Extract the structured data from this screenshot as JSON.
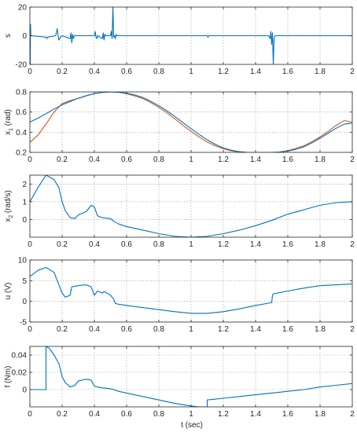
{
  "figure": {
    "xlabel": "t (sec)"
  },
  "colors": {
    "blue": "#0072BD",
    "red": "#D95319",
    "axis": "#262626",
    "grid": "#9a9a9a"
  },
  "chart_data": [
    {
      "type": "line",
      "ylabel": {
        "main": "s",
        "sub": ""
      },
      "xlim": [
        0,
        2
      ],
      "ylim": [
        -20,
        20
      ],
      "xticks": [
        0,
        0.2,
        0.4,
        0.6,
        0.8,
        1,
        1.2,
        1.4,
        1.6,
        1.8,
        2
      ],
      "xtick_labels": [
        "0",
        "0.2",
        "0.4",
        "0.6",
        "0.8",
        "1",
        "1.2",
        "1.4",
        "1.6",
        "1.8",
        "2"
      ],
      "yticks": [
        -20,
        0,
        20
      ],
      "ytick_labels": [
        "-20",
        "0",
        "20"
      ],
      "grid": true,
      "series": [
        {
          "color": "#0072BD",
          "x": [
            0,
            0.002,
            0.004,
            0.006,
            0.01,
            0.1,
            0.105,
            0.11,
            0.16,
            0.17,
            0.175,
            0.18,
            0.19,
            0.2,
            0.25,
            0.255,
            0.26,
            0.265,
            0.27,
            0.275,
            0.3,
            0.4,
            0.405,
            0.41,
            0.415,
            0.42,
            0.45,
            0.455,
            0.46,
            0.465,
            0.47,
            0.5,
            0.505,
            0.51,
            0.515,
            0.52,
            0.525,
            0.53,
            0.535,
            0.54,
            1.1,
            1.105,
            1.11,
            1.12,
            1.48,
            1.49,
            1.495,
            1.5,
            1.505,
            1.51,
            1.515,
            1.52,
            2
          ],
          "y": [
            0,
            -20,
            8,
            0,
            0,
            -1,
            -2,
            -1,
            0,
            5,
            0,
            -3,
            -1,
            0,
            -2,
            2,
            -5,
            1,
            -2,
            0,
            0,
            0,
            3,
            -1,
            -2,
            0,
            -2,
            2,
            -3,
            1,
            0,
            0,
            3,
            -2,
            20,
            -1,
            0,
            -2,
            1,
            0,
            0,
            -1,
            0,
            0,
            0,
            -2,
            3,
            -6,
            2,
            -20,
            -2,
            0,
            0
          ]
        }
      ]
    },
    {
      "type": "line",
      "ylabel": {
        "main": "x",
        "sub": "1",
        "after": " (rad)"
      },
      "xlim": [
        0,
        2
      ],
      "ylim": [
        0.2,
        0.8
      ],
      "xticks": [
        0,
        0.2,
        0.4,
        0.6,
        0.8,
        1,
        1.2,
        1.4,
        1.6,
        1.8,
        2
      ],
      "xtick_labels": [
        "0",
        "0.2",
        "0.4",
        "0.6",
        "0.8",
        "1",
        "1.2",
        "1.4",
        "1.6",
        "1.8",
        "2"
      ],
      "yticks": [
        0.2,
        0.4,
        0.6,
        0.8
      ],
      "ytick_labels": [
        "0.2",
        "0.4",
        "0.6",
        "0.8"
      ],
      "grid": true,
      "series": [
        {
          "color": "#D95319",
          "x": [
            0,
            0.05,
            0.1,
            0.15,
            0.2,
            0.25,
            0.3,
            0.35,
            0.4,
            0.45,
            0.5,
            0.55,
            0.6,
            0.65,
            0.7,
            0.75,
            0.8,
            0.85,
            0.9,
            0.95,
            1.0,
            1.05,
            1.1,
            1.15,
            1.2,
            1.25,
            1.3,
            1.35,
            1.4,
            1.45,
            1.5,
            1.55,
            1.6,
            1.65,
            1.7,
            1.75,
            1.8,
            1.85,
            1.9,
            1.95,
            2.0
          ],
          "y": [
            0.3,
            0.371,
            0.48,
            0.6,
            0.685,
            0.714,
            0.735,
            0.76,
            0.783,
            0.796,
            0.8,
            0.796,
            0.783,
            0.76,
            0.735,
            0.695,
            0.647,
            0.592,
            0.532,
            0.468,
            0.408,
            0.353,
            0.303,
            0.265,
            0.235,
            0.215,
            0.203,
            0.2,
            0.2,
            0.2,
            0.2,
            0.204,
            0.217,
            0.24,
            0.265,
            0.305,
            0.353,
            0.408,
            0.468,
            0.515,
            0.5
          ]
        },
        {
          "color": "#0072BD",
          "x": [
            0,
            0.05,
            0.1,
            0.15,
            0.2,
            0.25,
            0.3,
            0.35,
            0.4,
            0.45,
            0.5,
            0.55,
            0.6,
            0.65,
            0.7,
            0.75,
            0.8,
            0.85,
            0.9,
            0.95,
            1.0,
            1.05,
            1.1,
            1.15,
            1.2,
            1.25,
            1.3,
            1.35,
            1.4,
            1.45,
            1.5,
            1.55,
            1.6,
            1.65,
            1.7,
            1.75,
            1.8,
            1.85,
            1.9,
            1.95,
            2.0
          ],
          "y": [
            0.5,
            0.54,
            0.583,
            0.63,
            0.672,
            0.705,
            0.737,
            0.763,
            0.783,
            0.795,
            0.8,
            0.797,
            0.787,
            0.77,
            0.745,
            0.707,
            0.663,
            0.612,
            0.555,
            0.495,
            0.435,
            0.378,
            0.325,
            0.28,
            0.245,
            0.221,
            0.207,
            0.2,
            0.2,
            0.2,
            0.2,
            0.203,
            0.213,
            0.23,
            0.255,
            0.295,
            0.34,
            0.39,
            0.44,
            0.48,
            0.49
          ]
        }
      ]
    },
    {
      "type": "line",
      "ylabel": {
        "main": "x",
        "sub": "2",
        "after": " (rad/s)"
      },
      "xlim": [
        0,
        2
      ],
      "ylim": [
        -1,
        2.5
      ],
      "xticks": [
        0,
        0.2,
        0.4,
        0.6,
        0.8,
        1,
        1.2,
        1.4,
        1.6,
        1.8,
        2
      ],
      "xtick_labels": [
        "0",
        "0.2",
        "0.4",
        "0.6",
        "0.8",
        "1",
        "1.2",
        "1.4",
        "1.6",
        "1.8",
        "2"
      ],
      "yticks": [
        0,
        1,
        2
      ],
      "ytick_labels": [
        "0",
        "1",
        "2"
      ],
      "grid": true,
      "series": [
        {
          "color": "#0072BD",
          "x": [
            0,
            0.05,
            0.1,
            0.15,
            0.18,
            0.2,
            0.22,
            0.25,
            0.28,
            0.3,
            0.35,
            0.38,
            0.4,
            0.42,
            0.45,
            0.5,
            0.52,
            0.55,
            0.6,
            0.7,
            0.8,
            0.9,
            1.0,
            1.1,
            1.2,
            1.3,
            1.4,
            1.5,
            1.6,
            1.7,
            1.8,
            1.9,
            2.0
          ],
          "y": [
            1.0,
            1.8,
            2.5,
            2.25,
            1.8,
            1.0,
            0.5,
            0.1,
            0.05,
            0.25,
            0.45,
            0.8,
            0.7,
            0.2,
            0.1,
            0.05,
            -0.1,
            -0.25,
            -0.4,
            -0.6,
            -0.8,
            -0.95,
            -1.0,
            -0.95,
            -0.8,
            -0.6,
            -0.35,
            -0.05,
            0.3,
            0.55,
            0.8,
            0.95,
            1.0
          ]
        }
      ]
    },
    {
      "type": "line",
      "ylabel": {
        "main": "u (V)",
        "sub": ""
      },
      "xlim": [
        0,
        2
      ],
      "ylim": [
        -5,
        10
      ],
      "xticks": [
        0,
        0.2,
        0.4,
        0.6,
        0.8,
        1,
        1.2,
        1.4,
        1.6,
        1.8,
        2
      ],
      "xtick_labels": [
        "0",
        "0.2",
        "0.4",
        "0.6",
        "0.8",
        "1",
        "1.2",
        "1.4",
        "1.6",
        "1.8",
        "2"
      ],
      "yticks": [
        -5,
        0,
        5,
        10
      ],
      "ytick_labels": [
        "-5",
        "0",
        "5",
        "10"
      ],
      "grid": true,
      "series": [
        {
          "color": "#0072BD",
          "x": [
            0,
            0.05,
            0.1,
            0.15,
            0.18,
            0.2,
            0.22,
            0.25,
            0.26,
            0.27,
            0.3,
            0.35,
            0.38,
            0.4,
            0.42,
            0.45,
            0.46,
            0.5,
            0.52,
            0.53,
            0.55,
            0.6,
            0.7,
            0.8,
            0.9,
            1.0,
            1.1,
            1.2,
            1.3,
            1.4,
            1.5,
            1.505,
            1.51,
            1.6,
            1.7,
            1.8,
            1.9,
            2.0
          ],
          "y": [
            6.0,
            7.5,
            8.2,
            7.0,
            4.0,
            2.0,
            1.0,
            1.5,
            3.5,
            3.6,
            3.8,
            4.0,
            3.5,
            1.5,
            2.5,
            2.0,
            2.4,
            1.5,
            0.5,
            -0.5,
            -0.7,
            -1.0,
            -1.5,
            -2.0,
            -2.5,
            -2.9,
            -2.9,
            -2.5,
            -1.8,
            -1.0,
            -0.3,
            1.5,
            1.8,
            2.5,
            3.2,
            3.8,
            4.0,
            4.2
          ]
        }
      ]
    },
    {
      "type": "line",
      "ylabel": {
        "main": "f (Nm)",
        "sub": ""
      },
      "xlim": [
        0,
        2
      ],
      "ylim": [
        -0.02,
        0.05
      ],
      "xticks": [
        0,
        0.2,
        0.4,
        0.6,
        0.8,
        1,
        1.2,
        1.4,
        1.6,
        1.8,
        2
      ],
      "xtick_labels": [
        "0",
        "0.2",
        "0.4",
        "0.6",
        "0.8",
        "1",
        "1.2",
        "1.4",
        "1.6",
        "1.8",
        "2"
      ],
      "yticks": [
        0,
        0.02,
        0.04
      ],
      "ytick_labels": [
        "0",
        "0.02",
        "0.04"
      ],
      "grid": true,
      "series": [
        {
          "color": "#0072BD",
          "x": [
            0,
            0.1,
            0.1,
            0.12,
            0.15,
            0.18,
            0.2,
            0.22,
            0.25,
            0.28,
            0.3,
            0.35,
            0.38,
            0.4,
            0.42,
            0.45,
            0.5,
            0.52,
            0.55,
            0.6,
            0.7,
            0.8,
            0.9,
            1.0,
            1.05,
            1.1,
            1.1,
            1.2,
            1.3,
            1.4,
            1.5,
            1.6,
            1.7,
            1.8,
            1.9,
            2.0
          ],
          "y": [
            0,
            0,
            0.05,
            0.048,
            0.04,
            0.03,
            0.015,
            0.008,
            0.003,
            0.005,
            0.01,
            0.012,
            0.011,
            0.004,
            0.003,
            0.002,
            0.001,
            0.0,
            -0.002,
            -0.004,
            -0.008,
            -0.012,
            -0.016,
            -0.019,
            -0.02,
            -0.02,
            -0.012,
            -0.01,
            -0.008,
            -0.006,
            -0.004,
            -0.002,
            0.0,
            0.003,
            0.005,
            0.007
          ]
        }
      ]
    }
  ]
}
